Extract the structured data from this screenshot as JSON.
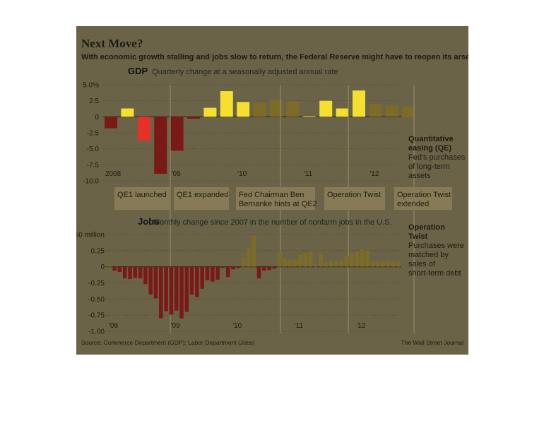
{
  "title": "Next Move?",
  "subtitle": "With economic growth stalling and jobs slow to return, the Federal Reserve might have to reopen its arsenal.",
  "source": "Source: Commerce Department (GDP); Labor Department (Jobs)",
  "credit": "The Wall Street Journal",
  "colors": {
    "panel": "#6b6348",
    "positive_bright": "#f5e030",
    "positive_dim": "#7d6c28",
    "negative_bright": "#e8302a",
    "negative_dim": "#7a1a18",
    "label_box": "#877b57"
  },
  "events": [
    {
      "label_lines": [
        "QE1 launched"
      ]
    },
    {
      "label_lines": [
        "QE1 expanded"
      ]
    },
    {
      "label_lines": [
        "Fed Chairman Ben",
        "Bernanke hints at QE2"
      ]
    },
    {
      "label_lines": [
        "Operation Twist"
      ]
    },
    {
      "label_lines": [
        "Operation Twist",
        "extended"
      ]
    }
  ],
  "side_notes": {
    "qe": {
      "heading": [
        "Quantitative",
        "easing (QE)"
      ],
      "body": [
        "Fed's purchases",
        "of long-term",
        "assets"
      ]
    },
    "twist": {
      "heading": [
        "Operation",
        "Twist"
      ],
      "body": [
        "Purchases were",
        "matched by",
        "sales of",
        "short-term debt"
      ]
    }
  },
  "chart_data": [
    {
      "type": "bar",
      "title": "GDP",
      "subtitle": "Quarterly change at a seasonally adjusted annual rate",
      "ylim": [
        -10.0,
        5.0
      ],
      "y_ticks": [
        "5.0%",
        "2.5",
        "0",
        "-2.5",
        "-5.0",
        "-7.5",
        "-10.0"
      ],
      "y_tick_values": [
        5.0,
        2.5,
        0,
        -2.5,
        -5.0,
        -7.5,
        -10.0
      ],
      "x_labels": [
        "2008",
        "'09",
        "'10",
        "'11",
        "'12"
      ],
      "x_label_index": [
        0,
        4,
        8,
        12,
        16
      ],
      "categories": [
        "2008 Q1",
        "2008 Q2",
        "2008 Q3",
        "2008 Q4",
        "2009 Q1",
        "2009 Q2",
        "2009 Q3",
        "2009 Q4",
        "2010 Q1",
        "2010 Q2",
        "2010 Q3",
        "2010 Q4",
        "2011 Q1",
        "2011 Q2",
        "2011 Q3",
        "2011 Q4",
        "2012 Q1",
        "2012 Q2",
        "2012 Q3"
      ],
      "values": [
        -1.8,
        1.3,
        -3.7,
        -8.9,
        -5.3,
        -0.3,
        1.4,
        4.0,
        2.3,
        2.2,
        2.6,
        2.4,
        0.1,
        2.5,
        1.3,
        4.1,
        2.0,
        1.7,
        1.6
      ]
    },
    {
      "type": "bar",
      "title": "Jobs",
      "subtitle": "Monthly change since 2007 in the number of nonfarm jobs in the U.S.",
      "ylim": [
        -1.0,
        0.5
      ],
      "y_ticks": [
        "0.50 million",
        "0.25",
        "0",
        "-0.25",
        "-0.50",
        "-0.75",
        "-1.00"
      ],
      "y_tick_values": [
        0.5,
        0.25,
        0,
        -0.25,
        -0.5,
        -0.75,
        -1.0
      ],
      "x_labels": [
        "'08",
        "'09",
        "'10",
        "'11",
        "'12"
      ],
      "x_label_index": [
        0,
        12,
        24,
        36,
        48
      ],
      "values": [
        0.03,
        -0.06,
        -0.08,
        -0.18,
        -0.19,
        -0.17,
        -0.18,
        -0.27,
        -0.43,
        -0.49,
        -0.8,
        -0.69,
        -0.74,
        -0.68,
        -0.8,
        -0.7,
        -0.43,
        -0.47,
        -0.34,
        -0.21,
        -0.23,
        -0.2,
        -0.02,
        -0.16,
        -0.04,
        -0.02,
        0.15,
        0.29,
        0.48,
        -0.18,
        -0.06,
        -0.05,
        -0.03,
        0.21,
        0.13,
        0.11,
        0.11,
        0.19,
        0.22,
        0.23,
        0.03,
        0.2,
        0.06,
        0.09,
        0.08,
        0.09,
        0.16,
        0.21,
        0.23,
        0.27,
        0.24,
        0.08,
        0.09,
        0.09,
        0.09,
        0.09,
        0.08
      ]
    }
  ]
}
